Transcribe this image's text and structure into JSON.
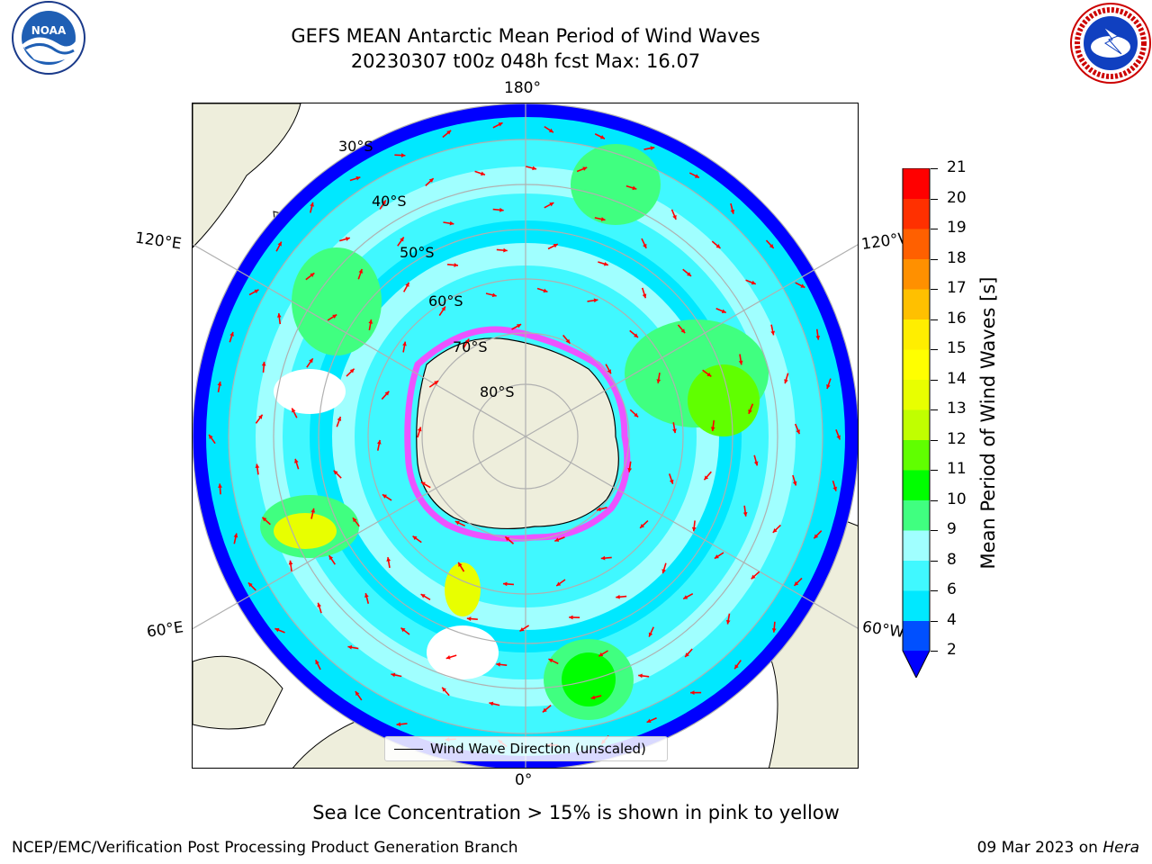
{
  "header": {
    "title_line1": "GEFS MEAN Antarctic Mean Period of Wind Waves",
    "title_line2": "20230307 t00z 048h fcst   Max: 16.07"
  },
  "logos": {
    "left": {
      "name": "noaa-logo",
      "text": "NOAA",
      "ring_text": "NATIONAL OCEANIC AND ATMOSPHERIC ADMINISTRATION · U.S. DEPARTMENT OF COMMERCE"
    },
    "right": {
      "name": "nws-logo",
      "ring_text": "NATIONAL WEATHER SERVICE"
    }
  },
  "map": {
    "projection": "south-polar-stereographic",
    "longitude_labels": {
      "top": "180°",
      "bottom": "0°",
      "left_upper": "120°E",
      "left_lower": "60°E",
      "right_upper": "120°W",
      "right_lower": "60°W"
    },
    "latitude_labels": [
      "30°S",
      "40°S",
      "50°S",
      "60°S",
      "70°S",
      "80°S"
    ],
    "legend": {
      "label": "Wind Wave Direction (unscaled)"
    },
    "colors": {
      "land": "#eeeedc",
      "ocean_none": "#ffffff",
      "arrows": "#ff0000",
      "sea_ice": "#ff40ff",
      "graticule": "#b0b0b0"
    }
  },
  "colorbar": {
    "label": "Mean Period of Wind Waves [s]",
    "ticks": [
      "2",
      "4",
      "6",
      "8",
      "9",
      "10",
      "11",
      "12",
      "13",
      "14",
      "15",
      "16",
      "17",
      "18",
      "19",
      "20",
      "21"
    ],
    "colors": [
      "#0050ff",
      "#00e8ff",
      "#40f8ff",
      "#a0ffff",
      "#40ff80",
      "#00ff00",
      "#60ff00",
      "#c0ff00",
      "#e8ff00",
      "#ffff00",
      "#ffee00",
      "#ffc000",
      "#ff9000",
      "#ff6000",
      "#ff3000",
      "#ff0000"
    ],
    "under_color": "#0000ff"
  },
  "subcaption": "Sea Ice Concentration > 15% is shown in pink to yellow",
  "footer": {
    "left": "NCEP/EMC/Verification Post Processing Product Generation Branch",
    "right_date": "09 Mar 2023 on ",
    "right_host": "Hera"
  }
}
